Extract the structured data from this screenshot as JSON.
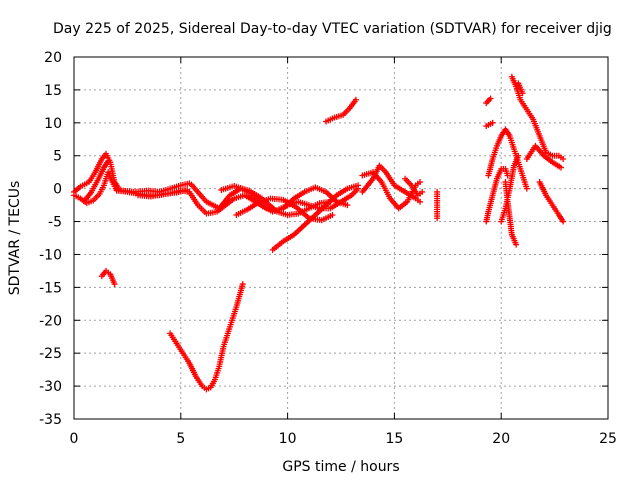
{
  "chart_data": {
    "type": "scatter",
    "title": "Day 225 of 2025, Sidereal Day-to-day VTEC variation (SDTVAR) for receiver djig",
    "xlabel": "GPS time / hours",
    "ylabel": "SDTVAR / TECUs",
    "xlim": [
      0,
      25
    ],
    "ylim": [
      -35,
      20
    ],
    "x_ticks": [
      0,
      5,
      10,
      15,
      20,
      25
    ],
    "y_ticks": [
      -35,
      -30,
      -25,
      -20,
      -15,
      -10,
      -5,
      0,
      5,
      10,
      15,
      20
    ],
    "grid": true,
    "marker": "plus",
    "color": "#ff0000",
    "series": [
      {
        "segments": [
          [
            [
              0,
              -1
            ],
            [
              0.3,
              -1.5
            ],
            [
              0.6,
              -2.2
            ],
            [
              0.9,
              -1.8
            ],
            [
              1.2,
              -0.8
            ],
            [
              1.4,
              0.5
            ],
            [
              1.6,
              2.5
            ],
            [
              1.8,
              1
            ],
            [
              2,
              -0.3
            ],
            [
              2.5,
              -0.5
            ],
            [
              3,
              -0.8
            ],
            [
              3.5,
              -1
            ],
            [
              4,
              -1
            ],
            [
              4.5,
              -0.7
            ],
            [
              5,
              -0.3
            ],
            [
              5.4,
              -0.5
            ],
            [
              5.8,
              -2.5
            ],
            [
              6.2,
              -3.8
            ],
            [
              6.7,
              -3.5
            ],
            [
              7.1,
              -2.5
            ],
            [
              7.5,
              -1.5
            ],
            [
              8,
              -1
            ],
            [
              8.5,
              -2
            ],
            [
              9,
              -3
            ],
            [
              9.5,
              -3.3
            ],
            [
              10,
              -2.5
            ],
            [
              10.5,
              -2
            ],
            [
              11,
              -2.5
            ],
            [
              11.5,
              -3
            ],
            [
              12,
              -3
            ],
            [
              12.5,
              -2
            ],
            [
              13,
              -1
            ],
            [
              13.3,
              0
            ]
          ],
          [
            [
              0,
              -0.5
            ],
            [
              0.3,
              0.3
            ],
            [
              0.7,
              1
            ],
            [
              1,
              2.5
            ],
            [
              1.3,
              4.5
            ],
            [
              1.5,
              5.3
            ],
            [
              1.7,
              4
            ],
            [
              1.9,
              1
            ],
            [
              2.1,
              0
            ]
          ],
          [
            [
              0.5,
              -1.8
            ],
            [
              0.8,
              -0.6
            ],
            [
              1.1,
              1.2
            ],
            [
              1.4,
              3.2
            ],
            [
              1.6,
              4.2
            ]
          ],
          [
            [
              2,
              -0.2
            ],
            [
              2.8,
              -0.5
            ],
            [
              3.5,
              -0.3
            ],
            [
              4,
              -0.5
            ],
            [
              4.5,
              0
            ],
            [
              5,
              0.5
            ],
            [
              5.4,
              0.8
            ]
          ],
          [
            [
              3,
              -1
            ],
            [
              3.6,
              -1.2
            ],
            [
              4.2,
              -0.8
            ],
            [
              4.8,
              -0.6
            ],
            [
              5.3,
              -0.2
            ]
          ],
          [
            [
              5.5,
              0.6
            ],
            [
              6.2,
              -2
            ],
            [
              6.8,
              -3
            ],
            [
              7.3,
              -1
            ],
            [
              7.8,
              0
            ],
            [
              8.3,
              -0.8
            ],
            [
              8.8,
              -2.5
            ],
            [
              9.3,
              -3.5
            ],
            [
              9.8,
              -3
            ],
            [
              10.3,
              -1.5
            ],
            [
              10.8,
              -0.5
            ],
            [
              11.3,
              0.2
            ],
            [
              11.8,
              -0.5
            ],
            [
              12.3,
              -2
            ],
            [
              12.8,
              -2.5
            ]
          ],
          [
            [
              6.9,
              -0.2
            ],
            [
              7.5,
              0.4
            ],
            [
              8.2,
              -0.3
            ],
            [
              8.8,
              -1.5
            ],
            [
              9.5,
              -3.5
            ],
            [
              10,
              -4
            ],
            [
              10.5,
              -3.8
            ],
            [
              11,
              -3
            ],
            [
              11.5,
              -2.2
            ],
            [
              12,
              -2
            ]
          ],
          [
            [
              7.6,
              -4
            ],
            [
              8.1,
              -3.2
            ],
            [
              8.6,
              -2.2
            ],
            [
              9.2,
              -1.5
            ],
            [
              9.8,
              -1.7
            ],
            [
              10.4,
              -2.8
            ],
            [
              11,
              -4.5
            ],
            [
              11.6,
              -4.8
            ],
            [
              12.1,
              -4
            ]
          ],
          [
            [
              1.3,
              -13.3
            ],
            [
              1.5,
              -12.5
            ],
            [
              1.7,
              -13
            ],
            [
              1.9,
              -14.5
            ]
          ],
          [
            [
              4.5,
              -22
            ],
            [
              4.8,
              -23.5
            ],
            [
              5.1,
              -25
            ],
            [
              5.4,
              -26.5
            ],
            [
              5.7,
              -28.5
            ],
            [
              6,
              -30
            ],
            [
              6.2,
              -30.5
            ],
            [
              6.4,
              -30.2
            ],
            [
              6.6,
              -29
            ],
            [
              6.8,
              -27
            ],
            [
              7,
              -24
            ],
            [
              7.3,
              -21
            ],
            [
              7.6,
              -18
            ],
            [
              7.9,
              -14.5
            ]
          ],
          [
            [
              9.3,
              -9.3
            ],
            [
              9.8,
              -8
            ],
            [
              10.3,
              -7
            ],
            [
              10.8,
              -5.5
            ],
            [
              11.3,
              -4
            ],
            [
              11.8,
              -2.5
            ],
            [
              12.3,
              -1
            ],
            [
              12.8,
              0
            ],
            [
              13.3,
              0.5
            ]
          ],
          [
            [
              11.8,
              10.2
            ],
            [
              12.2,
              10.8
            ],
            [
              12.6,
              11.2
            ],
            [
              12.9,
              12.2
            ],
            [
              13.2,
              13.5
            ]
          ],
          [
            [
              13.5,
              -0.5
            ],
            [
              14,
              1.5
            ],
            [
              14.3,
              3.5
            ],
            [
              14.6,
              2.5
            ],
            [
              15,
              0.5
            ],
            [
              15.5,
              -0.5
            ],
            [
              16,
              -1.5
            ],
            [
              16.2,
              -2
            ]
          ],
          [
            [
              13.5,
              2
            ],
            [
              14,
              2.5
            ],
            [
              14.4,
              1
            ],
            [
              14.8,
              -1.5
            ],
            [
              15.2,
              -3
            ],
            [
              15.6,
              -2
            ],
            [
              16,
              0.5
            ],
            [
              16.2,
              1
            ]
          ],
          [
            [
              15.5,
              1.5
            ],
            [
              15.8,
              0.5
            ],
            [
              16.1,
              -1
            ],
            [
              16.3,
              -0.5
            ]
          ],
          [
            [
              17,
              -0.5
            ],
            [
              17,
              -1.5
            ],
            [
              17,
              -2.5
            ],
            [
              17,
              -3.5
            ],
            [
              17,
              -4.5
            ]
          ],
          [
            [
              19.3,
              13
            ],
            [
              19.5,
              13.7
            ]
          ],
          [
            [
              19.3,
              9.5
            ],
            [
              19.6,
              10
            ]
          ],
          [
            [
              19.3,
              -5
            ],
            [
              19.4,
              -3.5
            ],
            [
              19.6,
              -1
            ],
            [
              19.8,
              1.5
            ],
            [
              20,
              3
            ],
            [
              20.2,
              3
            ],
            [
              20.3,
              2
            ]
          ],
          [
            [
              19.4,
              2
            ],
            [
              19.6,
              4.5
            ],
            [
              19.8,
              6.5
            ],
            [
              20,
              8
            ],
            [
              20.2,
              9
            ],
            [
              20.4,
              8
            ],
            [
              20.6,
              6
            ],
            [
              20.8,
              4
            ],
            [
              21,
              2
            ],
            [
              21.2,
              0
            ]
          ],
          [
            [
              20,
              -5
            ],
            [
              20.2,
              -3
            ],
            [
              20.4,
              0
            ],
            [
              20.6,
              3.5
            ],
            [
              20.8,
              5
            ]
          ],
          [
            [
              20.2,
              1
            ],
            [
              20.3,
              -2
            ],
            [
              20.4,
              -4.5
            ],
            [
              20.5,
              -7
            ],
            [
              20.7,
              -8.5
            ]
          ],
          [
            [
              20.5,
              17
            ],
            [
              20.7,
              15.5
            ],
            [
              20.9,
              13.5
            ],
            [
              21.2,
              12
            ],
            [
              21.5,
              10.5
            ],
            [
              21.8,
              8
            ],
            [
              22.1,
              5.5
            ],
            [
              22.4,
              5
            ],
            [
              22.7,
              5
            ],
            [
              22.9,
              4.5
            ]
          ],
          [
            [
              20.8,
              16
            ],
            [
              21,
              14.5
            ]
          ],
          [
            [
              21.2,
              4.5
            ],
            [
              21.6,
              6.5
            ],
            [
              22,
              5
            ],
            [
              22.4,
              4
            ],
            [
              22.8,
              3.2
            ]
          ],
          [
            [
              21.8,
              1
            ],
            [
              22.1,
              -1
            ],
            [
              22.4,
              -2.5
            ],
            [
              22.7,
              -4
            ],
            [
              22.9,
              -5
            ]
          ]
        ]
      }
    ]
  }
}
